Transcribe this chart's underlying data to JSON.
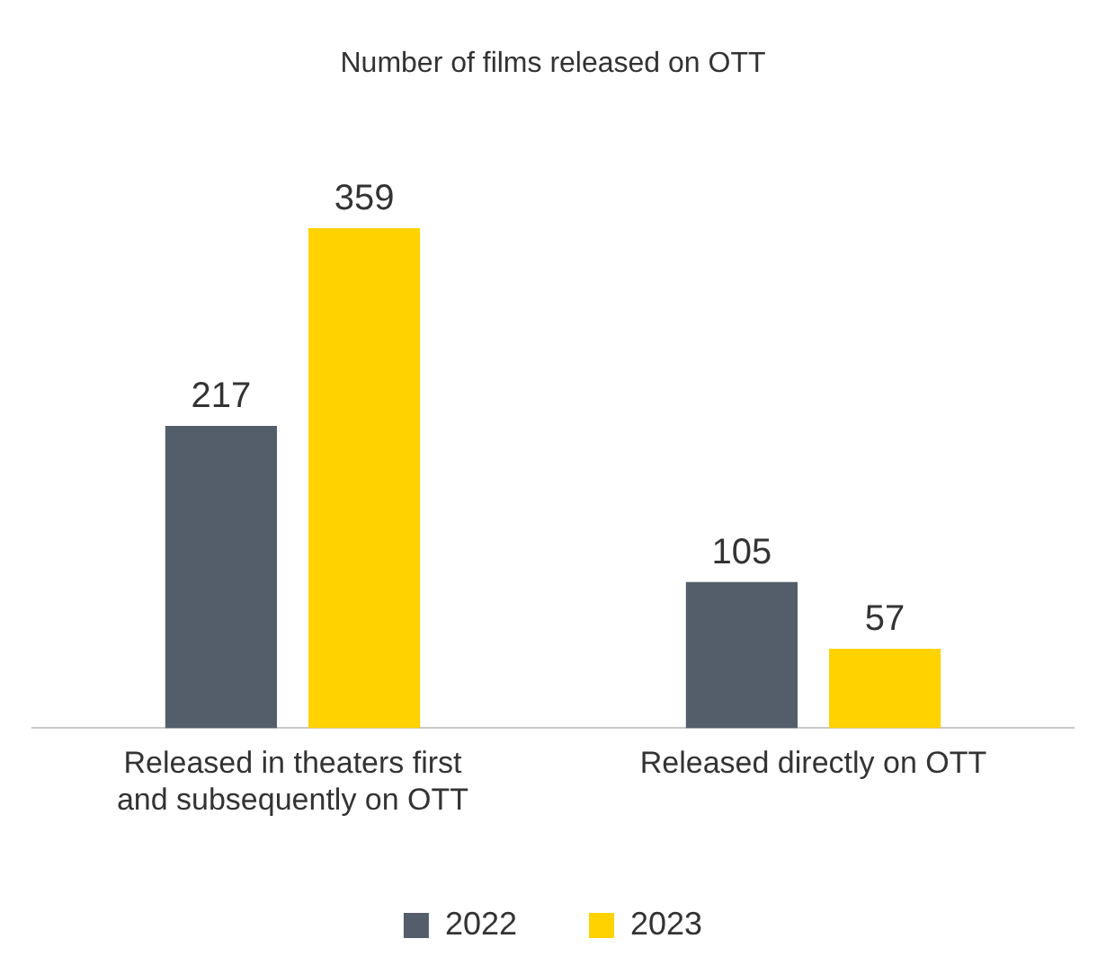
{
  "chart_data": {
    "type": "bar",
    "title": "Number of films released on OTT",
    "categories": [
      "Released in theaters first and subsequently on OTT",
      "Released directly on OTT"
    ],
    "series": [
      {
        "name": "2022",
        "color": "#535e6a",
        "values": [
          217,
          105
        ]
      },
      {
        "name": "2023",
        "color": "#ffd200",
        "values": [
          359,
          57
        ]
      }
    ],
    "data_labels": true,
    "legend": "bottom",
    "grid": false,
    "tick_labels": "x"
  }
}
